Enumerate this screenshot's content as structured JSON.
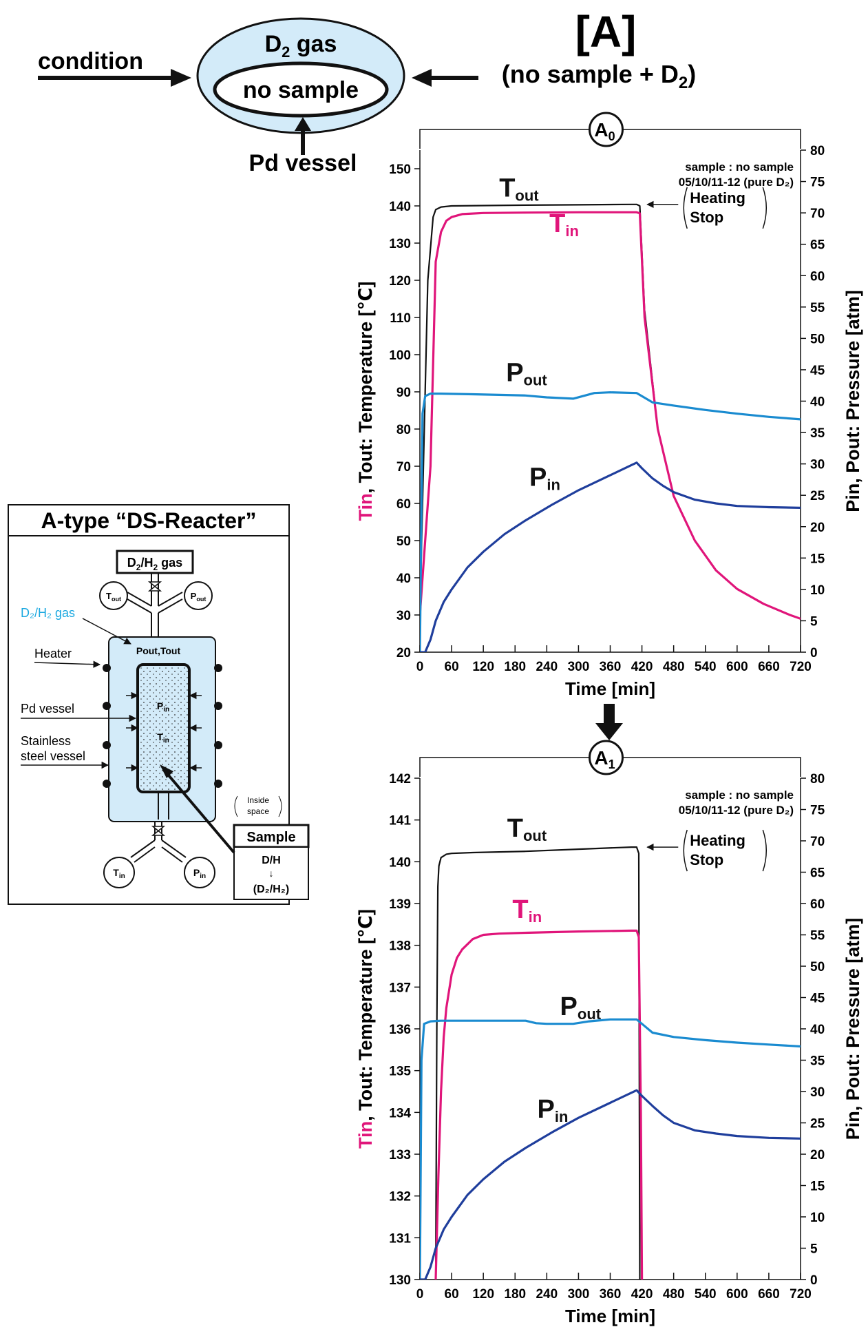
{
  "header": {
    "condition_label": "condition",
    "gas_label_main": "D",
    "gas_label_sub": "2",
    "gas_label_rest": " gas",
    "no_sample_label": "no sample",
    "vessel_label": "Pd vessel",
    "section_title": "[A]",
    "section_subtitle_main": "(no sample + D",
    "section_subtitle_sub": "2",
    "section_subtitle_end": ")"
  },
  "reactor": {
    "title": "A-type “DS-Reacter”",
    "gas_box_main": "D",
    "gas_box_sub1": "2",
    "gas_box_mid": "/H",
    "gas_box_sub2": "2",
    "gas_box_end": " gas",
    "tout_main": "T",
    "tout_sub": "out",
    "pout_main": "P",
    "pout_sub": "out",
    "tin_main": "T",
    "tin_sub": "in",
    "pin_main": "P",
    "pin_sub": "in",
    "gas_side_label": "D₂/H₂ gas",
    "inner_gas_label": "Pout,Tout",
    "heater_label": "Heater",
    "pd_vessel_label": "Pd vessel",
    "stainless_label_1": "Stainless",
    "stainless_label_2": "steel vessel",
    "inside_space_1": "Inside",
    "inside_space_2": "space",
    "sample_box_label": "Sample",
    "dh_label": "D/H",
    "arrow_label": "↓",
    "ratio_label": "(D₂/H₂)",
    "gas_side_color": "#1aa8e0"
  },
  "colors": {
    "t_in": "#e0157a",
    "t_out": "#111111",
    "p_out": "#1a8bd0",
    "p_in": "#1f3e9c",
    "vessel_fill": "#d3ebf9"
  },
  "chart_data": [
    {
      "badge_main": "A",
      "badge_sub": "0",
      "type": "line",
      "xlabel": "Time [min]",
      "ylabel_left_colored": "Tin",
      "ylabel_left_rest": ", Tout: Temperature [℃]",
      "ylabel_right": "Pin, Pout: Pressure [atm]",
      "note_line1": "sample : no sample",
      "note_line2": "05/10/11-12 (pure D₂)",
      "heating_line1": "Heating",
      "heating_line2": "Stop",
      "xlim": [
        0,
        720
      ],
      "xticks": [
        0,
        60,
        120,
        180,
        240,
        300,
        360,
        420,
        480,
        540,
        600,
        660,
        720
      ],
      "ylim_left": [
        20,
        155
      ],
      "yticks_left": [
        20,
        30,
        40,
        50,
        60,
        70,
        80,
        90,
        100,
        110,
        120,
        130,
        140,
        150
      ],
      "ylim_right": [
        0,
        80
      ],
      "yticks_right": [
        0,
        5,
        10,
        15,
        20,
        25,
        30,
        35,
        40,
        45,
        50,
        55,
        60,
        65,
        70,
        75,
        80
      ],
      "grid": false,
      "series": [
        {
          "name": "Tout",
          "label_main": "T",
          "label_sub": "out",
          "axis": "left",
          "color": "#111111",
          "x": [
            0,
            15,
            25,
            30,
            40,
            60,
            120,
            200,
            300,
            400,
            410,
            416,
            425,
            450,
            480,
            520,
            560,
            600,
            650,
            700,
            720
          ],
          "y": [
            30,
            120,
            137,
            139,
            139.7,
            140,
            140.1,
            140.2,
            140.3,
            140.4,
            140.4,
            140,
            112,
            80,
            62,
            50,
            42,
            37,
            33,
            30,
            29
          ]
        },
        {
          "name": "Tin",
          "label_main": "T",
          "label_sub": "in",
          "axis": "left",
          "color": "#e0157a",
          "x": [
            0,
            20,
            30,
            40,
            50,
            60,
            80,
            120,
            200,
            300,
            400,
            410,
            416,
            425,
            450,
            480,
            520,
            560,
            600,
            650,
            700,
            720
          ],
          "y": [
            30,
            70,
            125,
            133,
            136,
            137,
            137.8,
            138.1,
            138.2,
            138.3,
            138.3,
            138.3,
            138,
            110,
            80,
            62,
            50,
            42,
            37,
            33,
            30,
            29
          ]
        },
        {
          "name": "Pout",
          "label_main": "P",
          "label_sub": "out",
          "axis": "right",
          "color": "#1a8bd0",
          "x": [
            0,
            5,
            10,
            20,
            40,
            100,
            200,
            240,
            290,
            330,
            360,
            410,
            420,
            440,
            480,
            540,
            600,
            660,
            720
          ],
          "y": [
            0,
            38,
            40.8,
            41.2,
            41.2,
            41.1,
            40.9,
            40.6,
            40.4,
            41.3,
            41.4,
            41.3,
            40.8,
            39.8,
            39.3,
            38.6,
            38.0,
            37.5,
            37.1
          ]
        },
        {
          "name": "Pin",
          "label_main": "P",
          "label_sub": "in",
          "axis": "right",
          "color": "#1f3e9c",
          "x": [
            0,
            10,
            20,
            30,
            45,
            60,
            90,
            120,
            160,
            200,
            250,
            300,
            350,
            400,
            410,
            420,
            440,
            460,
            480,
            520,
            560,
            600,
            660,
            720
          ],
          "y": [
            0,
            0,
            2,
            5,
            8,
            10,
            13.5,
            16,
            18.8,
            21,
            23.5,
            25.8,
            27.8,
            29.8,
            30.2,
            29.3,
            27.7,
            26.5,
            25.5,
            24.3,
            23.7,
            23.3,
            23.1,
            23.0
          ]
        }
      ]
    },
    {
      "badge_main": "A",
      "badge_sub": "1",
      "type": "line",
      "xlabel": "Time [min]",
      "ylabel_left_colored": "Tin",
      "ylabel_left_rest": ", Tout: Temperature [℃]",
      "ylabel_right": "Pin, Pout: Pressure [atm]",
      "note_line1": "sample : no sample",
      "note_line2": "05/10/11-12 (pure D₂)",
      "heating_line1": "Heating",
      "heating_line2": "Stop",
      "xlim": [
        0,
        720
      ],
      "xticks": [
        0,
        60,
        120,
        180,
        240,
        300,
        360,
        420,
        480,
        540,
        600,
        660,
        720
      ],
      "ylim_left": [
        130,
        142
      ],
      "yticks_left": [
        130,
        131,
        132,
        133,
        134,
        135,
        136,
        137,
        138,
        139,
        140,
        141,
        142
      ],
      "ylim_right": [
        0,
        80
      ],
      "yticks_right": [
        0,
        5,
        10,
        15,
        20,
        25,
        30,
        35,
        40,
        45,
        50,
        55,
        60,
        65,
        70,
        75,
        80
      ],
      "grid": false,
      "series": [
        {
          "name": "Tout",
          "label_main": "T",
          "label_sub": "out",
          "axis": "left",
          "color": "#111111",
          "x": [
            30,
            32,
            34,
            36,
            40,
            50,
            60,
            100,
            200,
            300,
            400,
            410,
            414,
            416
          ],
          "y": [
            130,
            136,
            139.4,
            139.9,
            140.1,
            140.18,
            140.2,
            140.22,
            140.25,
            140.3,
            140.35,
            140.35,
            140.2,
            130
          ]
        },
        {
          "name": "Tin",
          "label_main": "T",
          "label_sub": "in",
          "axis": "left",
          "color": "#e0157a",
          "x": [
            30,
            35,
            40,
            45,
            50,
            60,
            70,
            80,
            100,
            120,
            150,
            200,
            300,
            400,
            410,
            414,
            418,
            420
          ],
          "y": [
            130,
            132.5,
            134.5,
            135.8,
            136.5,
            137.3,
            137.7,
            137.9,
            138.15,
            138.25,
            138.28,
            138.3,
            138.33,
            138.35,
            138.35,
            138.2,
            134,
            130
          ]
        },
        {
          "name": "Pout",
          "label_main": "P",
          "label_sub": "out",
          "axis": "right",
          "color": "#1a8bd0",
          "x": [
            0,
            3,
            8,
            20,
            40,
            100,
            200,
            220,
            240,
            290,
            320,
            360,
            410,
            420,
            440,
            480,
            540,
            600,
            660,
            720
          ],
          "y": [
            0,
            35,
            40.8,
            41.2,
            41.3,
            41.3,
            41.3,
            40.9,
            40.8,
            40.8,
            41.2,
            41.5,
            41.5,
            40.8,
            39.4,
            38.7,
            38.2,
            37.8,
            37.5,
            37.2
          ]
        },
        {
          "name": "Pin",
          "label_main": "P",
          "label_sub": "in",
          "axis": "right",
          "color": "#1f3e9c",
          "x": [
            0,
            10,
            20,
            30,
            45,
            60,
            90,
            120,
            160,
            200,
            250,
            300,
            350,
            400,
            410,
            420,
            440,
            460,
            480,
            520,
            560,
            600,
            660,
            720
          ],
          "y": [
            0,
            0,
            2,
            5,
            8,
            10,
            13.5,
            16,
            18.8,
            21,
            23.5,
            25.8,
            27.8,
            29.8,
            30.2,
            29.3,
            27.7,
            26.2,
            25.0,
            23.8,
            23.3,
            22.9,
            22.6,
            22.5
          ]
        }
      ]
    }
  ]
}
